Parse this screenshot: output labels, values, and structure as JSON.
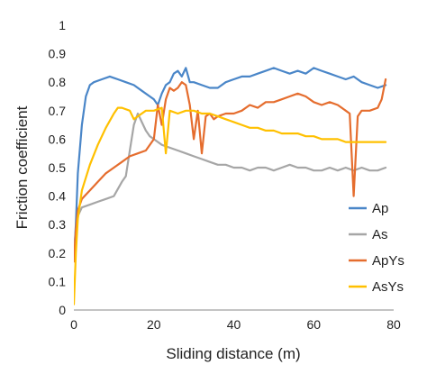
{
  "chart_data": {
    "type": "line",
    "title": "",
    "xlabel": "Sliding distance (m)",
    "ylabel": "Friction coefficient",
    "xlim": [
      0,
      80
    ],
    "ylim": [
      0,
      1
    ],
    "x_ticks": [
      0,
      20,
      40,
      60,
      80
    ],
    "y_ticks": [
      0,
      0.1,
      0.2,
      0.3,
      0.4,
      0.5,
      0.6,
      0.7,
      0.8,
      0.9,
      1
    ],
    "x_tick_labels": [
      "0",
      "20",
      "40",
      "60",
      "80"
    ],
    "y_tick_labels": [
      "0",
      "0.1",
      "0.2",
      "0.3",
      "0.4",
      "0.5",
      "0.6",
      "0.7",
      "0.8",
      "0.9",
      "1"
    ],
    "grid": false,
    "legend_position": "right",
    "series": [
      {
        "name": "Ap",
        "color": "#4a86c8",
        "x": [
          0,
          0.5,
          1,
          2,
          3,
          4,
          5,
          7,
          9,
          11,
          13,
          15,
          17,
          19,
          20,
          21,
          22,
          23,
          24,
          25,
          26,
          27,
          28,
          29,
          30,
          32,
          34,
          36,
          38,
          40,
          42,
          44,
          46,
          48,
          50,
          52,
          54,
          56,
          58,
          60,
          62,
          64,
          66,
          68,
          70,
          72,
          74,
          76,
          78
        ],
        "y": [
          0.18,
          0.3,
          0.48,
          0.65,
          0.75,
          0.79,
          0.8,
          0.81,
          0.82,
          0.81,
          0.8,
          0.79,
          0.77,
          0.75,
          0.74,
          0.72,
          0.76,
          0.79,
          0.8,
          0.83,
          0.84,
          0.82,
          0.85,
          0.8,
          0.8,
          0.79,
          0.78,
          0.78,
          0.8,
          0.81,
          0.82,
          0.82,
          0.83,
          0.84,
          0.85,
          0.84,
          0.83,
          0.84,
          0.83,
          0.85,
          0.84,
          0.83,
          0.82,
          0.81,
          0.82,
          0.8,
          0.79,
          0.78,
          0.79
        ]
      },
      {
        "name": "As",
        "color": "#a6a6a6",
        "x": [
          0,
          0.5,
          1,
          2,
          4,
          6,
          8,
          10,
          12,
          13,
          14,
          15,
          16,
          17,
          18,
          19,
          20,
          22,
          24,
          26,
          28,
          30,
          32,
          34,
          36,
          38,
          40,
          42,
          44,
          46,
          48,
          50,
          52,
          54,
          56,
          58,
          60,
          62,
          64,
          66,
          68,
          70,
          72,
          74,
          76,
          78
        ],
        "y": [
          0.2,
          0.28,
          0.33,
          0.36,
          0.37,
          0.38,
          0.39,
          0.4,
          0.45,
          0.47,
          0.56,
          0.65,
          0.69,
          0.66,
          0.63,
          0.61,
          0.6,
          0.58,
          0.57,
          0.56,
          0.55,
          0.54,
          0.53,
          0.52,
          0.51,
          0.51,
          0.5,
          0.5,
          0.49,
          0.5,
          0.5,
          0.49,
          0.5,
          0.51,
          0.5,
          0.5,
          0.49,
          0.49,
          0.5,
          0.49,
          0.5,
          0.49,
          0.5,
          0.49,
          0.49,
          0.5
        ]
      },
      {
        "name": "ApYs",
        "color": "#e56d2e",
        "x": [
          0,
          0.5,
          1,
          2,
          4,
          6,
          8,
          10,
          12,
          14,
          16,
          18,
          20,
          21,
          22,
          23,
          24,
          25,
          26,
          27,
          28,
          29,
          30,
          31,
          32,
          33,
          34,
          35,
          36,
          38,
          40,
          42,
          44,
          46,
          48,
          50,
          52,
          54,
          56,
          58,
          60,
          62,
          64,
          66,
          68,
          69,
          70,
          71,
          72,
          74,
          76,
          77,
          78
        ],
        "y": [
          0.17,
          0.28,
          0.35,
          0.39,
          0.42,
          0.45,
          0.48,
          0.5,
          0.52,
          0.54,
          0.55,
          0.56,
          0.6,
          0.72,
          0.65,
          0.74,
          0.78,
          0.77,
          0.78,
          0.8,
          0.79,
          0.72,
          0.6,
          0.7,
          0.55,
          0.68,
          0.69,
          0.67,
          0.68,
          0.69,
          0.69,
          0.7,
          0.72,
          0.71,
          0.73,
          0.73,
          0.74,
          0.75,
          0.76,
          0.75,
          0.73,
          0.72,
          0.73,
          0.72,
          0.7,
          0.69,
          0.4,
          0.68,
          0.7,
          0.7,
          0.71,
          0.74,
          0.81
        ]
      },
      {
        "name": "AsYs",
        "color": "#ffc000",
        "x": [
          0,
          0.5,
          1,
          2,
          4,
          6,
          8,
          10,
          11,
          12,
          14,
          15,
          16,
          18,
          20,
          22,
          23,
          24,
          26,
          28,
          30,
          32,
          34,
          36,
          38,
          40,
          42,
          44,
          46,
          48,
          50,
          52,
          54,
          56,
          58,
          60,
          62,
          64,
          66,
          68,
          70,
          72,
          74,
          76,
          78
        ],
        "y": [
          0.02,
          0.2,
          0.32,
          0.42,
          0.51,
          0.58,
          0.64,
          0.69,
          0.71,
          0.71,
          0.7,
          0.67,
          0.68,
          0.7,
          0.7,
          0.71,
          0.55,
          0.7,
          0.69,
          0.7,
          0.7,
          0.69,
          0.69,
          0.68,
          0.67,
          0.66,
          0.65,
          0.64,
          0.64,
          0.63,
          0.63,
          0.62,
          0.62,
          0.62,
          0.61,
          0.61,
          0.6,
          0.6,
          0.6,
          0.59,
          0.59,
          0.59,
          0.59,
          0.59,
          0.59
        ]
      }
    ]
  }
}
